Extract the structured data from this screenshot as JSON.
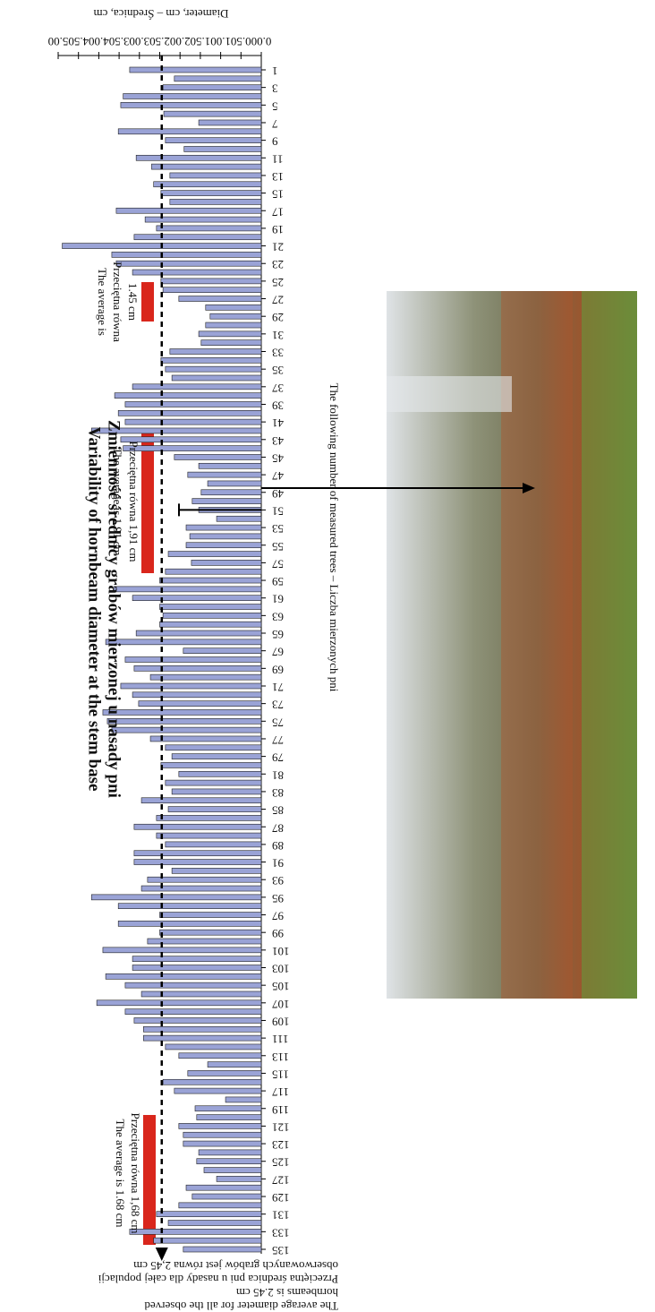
{
  "chart_data": {
    "type": "bar",
    "orientation": "horizontal",
    "title": "Variability of hornbeam diameter at the stem base",
    "subtitle": "Zmienność średnicy grabów mierzonej u nasady pni",
    "value_axis_label": "Diameter, cm – Średnica, cm",
    "category_axis_label": "The following number of measured trees – Liczba mierzonych pni",
    "color": "#9aa3d6",
    "categories": [
      "1",
      null,
      "3",
      null,
      "5",
      null,
      "7",
      null,
      "9",
      null,
      "11",
      null,
      "13",
      null,
      "15",
      null,
      "17",
      null,
      "19",
      null,
      "21",
      null,
      "23",
      null,
      "25",
      null,
      "27",
      null,
      "29",
      null,
      "31",
      null,
      "33",
      null,
      "35",
      null,
      "37",
      null,
      "39",
      null,
      "41",
      null,
      "43",
      null,
      "45",
      null,
      "47",
      null,
      "49",
      null,
      "51",
      null,
      "53",
      null,
      "55",
      null,
      "57",
      null,
      "59",
      null,
      "61",
      null,
      "63",
      null,
      "65",
      null,
      "67",
      null,
      "69",
      null,
      "71",
      null,
      "73",
      null,
      "75",
      null,
      "77",
      null,
      "79",
      null,
      "81",
      null,
      "83",
      null,
      "85",
      null,
      "87",
      null,
      "89",
      null,
      "91",
      null,
      "93",
      null,
      "95",
      null,
      "97",
      null,
      "99",
      null,
      "101",
      null,
      "103",
      null,
      "105",
      null,
      "107",
      null,
      "109",
      null,
      "111",
      null,
      "113",
      null,
      "115",
      null,
      "117",
      null,
      "119",
      null,
      "121",
      null,
      "123",
      null,
      "125",
      null,
      "127",
      null,
      "129",
      null,
      "131",
      null,
      "133",
      null,
      "135"
    ],
    "values": [
      3.24,
      2.14,
      2.42,
      3.4,
      3.46,
      2.4,
      1.54,
      3.52,
      2.36,
      1.9,
      3.08,
      2.7,
      2.25,
      2.65,
      2.47,
      2.25,
      3.57,
      2.86,
      2.58,
      3.13,
      4.9,
      3.68,
      3.57,
      3.17,
      2.47,
      2.42,
      2.03,
      1.37,
      1.26,
      1.37,
      1.54,
      1.48,
      2.25,
      2.47,
      2.36,
      2.2,
      3.17,
      3.61,
      3.35,
      3.52,
      3.35,
      4.18,
      3.46,
      3.4,
      2.14,
      1.54,
      1.81,
      1.32,
      1.48,
      1.7,
      1.54,
      1.1,
      1.85,
      1.76,
      1.85,
      2.29,
      1.72,
      2.36,
      2.5,
      3.63,
      3.17,
      2.5,
      2.42,
      2.5,
      3.08,
      3.83,
      1.92,
      3.35,
      3.13,
      2.73,
      3.46,
      3.17,
      3.02,
      3.9,
      3.79,
      3.68,
      2.73,
      2.36,
      2.2,
      2.47,
      2.03,
      2.36,
      2.2,
      2.95,
      2.29,
      2.58,
      3.13,
      2.58,
      2.36,
      3.13,
      3.13,
      2.2,
      2.8,
      2.95,
      4.18,
      3.52,
      2.5,
      3.52,
      2.5,
      2.8,
      3.9,
      3.17,
      3.17,
      3.83,
      3.35,
      2.95,
      4.05,
      3.35,
      3.13,
      2.9,
      2.9,
      2.36,
      2.03,
      1.32,
      1.81,
      2.42,
      2.14,
      0.88,
      1.63,
      1.59,
      2.03,
      1.92,
      1.92,
      1.54,
      1.59,
      1.41,
      1.1,
      1.85,
      1.7,
      2.03,
      2.58,
      2.29,
      3.24,
      2.65,
      1.92
    ],
    "xlim": [
      0,
      5
    ],
    "xticks": [
      {
        "value": 0,
        "label": "0.00"
      },
      {
        "value": 0.5,
        "label": "0.50"
      },
      {
        "value": 1,
        "label": "1.00"
      },
      {
        "value": 1.5,
        "label": "1.50"
      },
      {
        "value": 2,
        "label": "2.00"
      },
      {
        "value": 2.5,
        "label": "2.50"
      },
      {
        "value": 3,
        "label": "3.00"
      },
      {
        "value": 3.5,
        "label": "3.50"
      },
      {
        "value": 4,
        "label": "4.00"
      },
      {
        "value": 4.5,
        "label": "4.50"
      },
      {
        "value": 5,
        "label": "5.00"
      }
    ],
    "mean": 2.45,
    "mean_label": [
      "obserwowanych grabów jest równa 2,45 cm",
      "Przeciętna średnica pni u nasady dla całej populacji",
      "hornbeams is 2.45 cm",
      "The average diameter for all the observed"
    ],
    "segment_notes": [
      [
        "The average is",
        "Przeciętna równa",
        "1.45 cm"
      ],
      [
        "The average is 1.91 cm",
        "Przeciętna równa 1,91 cm"
      ],
      [
        "The average is 1.68 cm",
        "Przeciętna równa 1,68 cm"
      ]
    ]
  }
}
